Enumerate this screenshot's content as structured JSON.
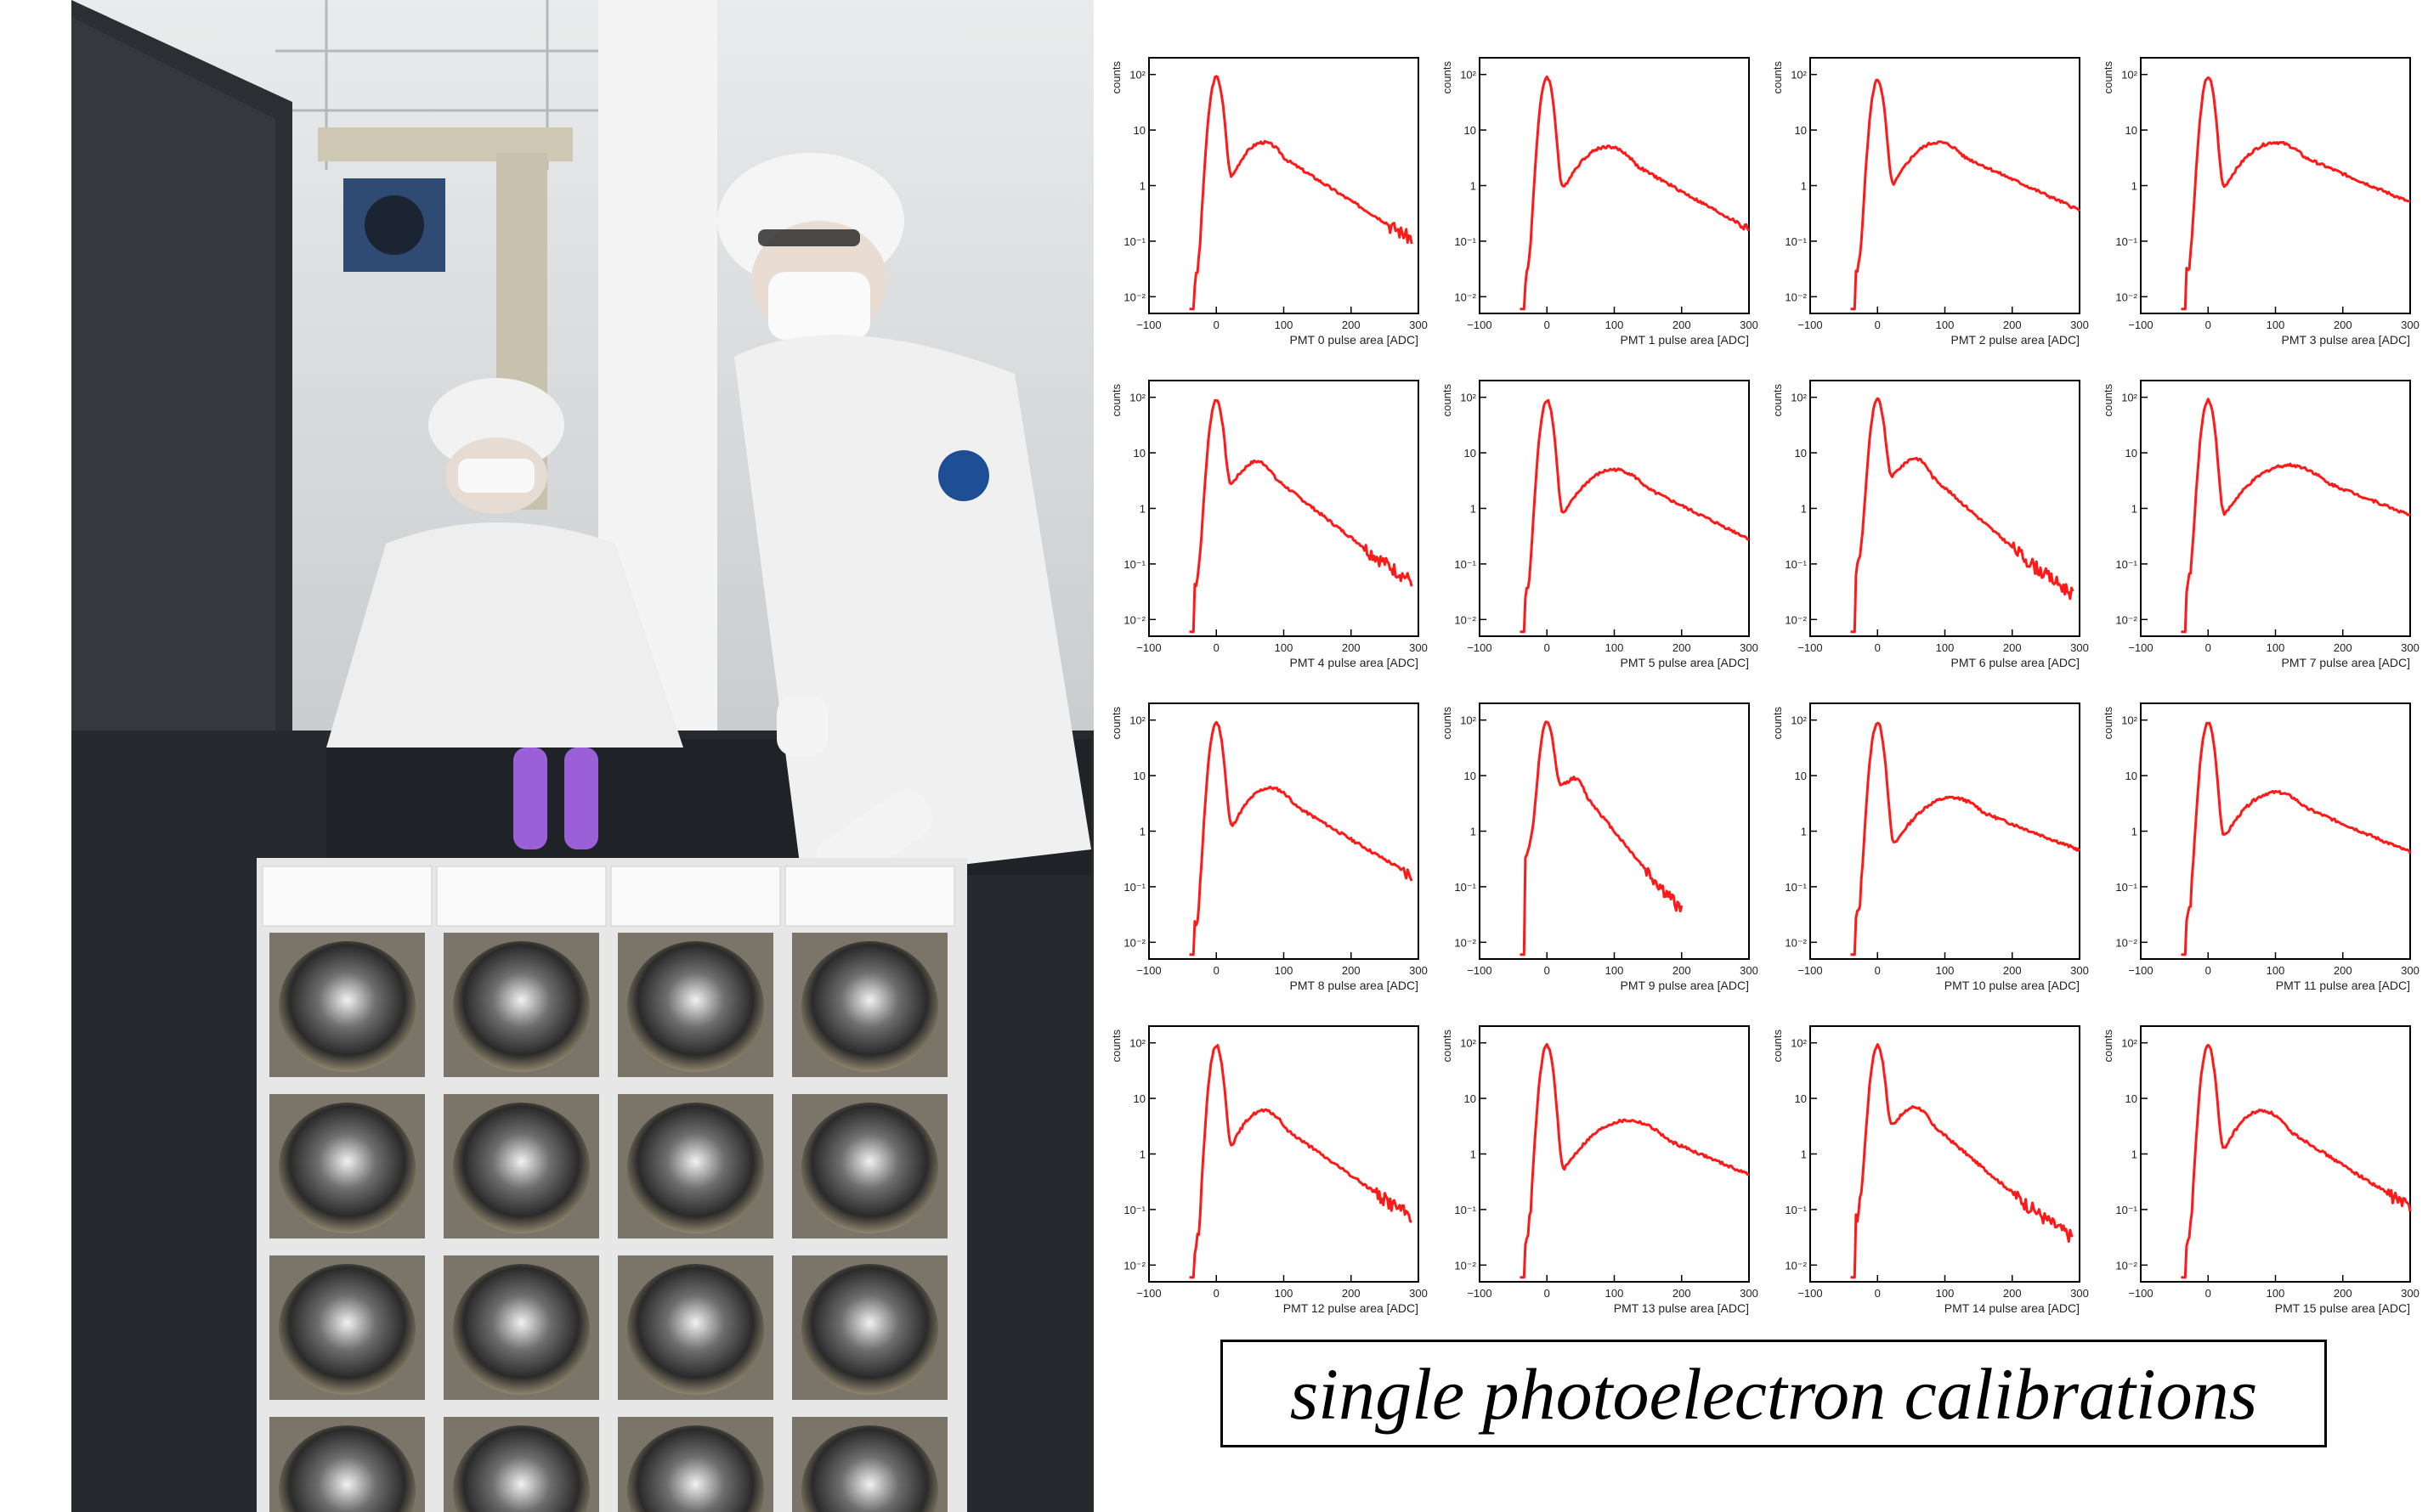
{
  "caption": "single photoelectron calibrations",
  "colors": {
    "histogram": "#ff1a1a",
    "frame": "#000000",
    "background": "#ffffff"
  },
  "photo": {
    "description_icon": "lab-photo-icon",
    "people": 2
  },
  "chart_data": {
    "type": "line",
    "layout": "4x4 grid of histograms",
    "x_range": [
      -100,
      300
    ],
    "y_scale": "log",
    "x_ticks": [
      "−100",
      "0",
      "100",
      "200",
      "300"
    ],
    "y_ticks": [
      "10⁻²",
      "10⁻¹",
      "1",
      "10",
      "10²"
    ],
    "ylabel": "counts",
    "panels": [
      {
        "xlabel": "PMT 0 pulse area [ADC]",
        "peak_y": 90,
        "shoulder_x": 70,
        "shoulder_y": 6,
        "slope": 0.018,
        "end_x": 290
      },
      {
        "xlabel": "PMT 1 pulse area [ADC]",
        "peak_y": 90,
        "shoulder_x": 90,
        "shoulder_y": 5,
        "slope": 0.016,
        "end_x": 300
      },
      {
        "xlabel": "PMT 2 pulse area [ADC]",
        "peak_y": 80,
        "shoulder_x": 90,
        "shoulder_y": 6,
        "slope": 0.013,
        "end_x": 300
      },
      {
        "xlabel": "PMT 3 pulse area [ADC]",
        "peak_y": 90,
        "shoulder_x": 100,
        "shoulder_y": 6,
        "slope": 0.012,
        "end_x": 300
      },
      {
        "xlabel": "PMT 4 pulse area [ADC]",
        "peak_y": 90,
        "shoulder_x": 60,
        "shoulder_y": 7,
        "slope": 0.022,
        "end_x": 290
      },
      {
        "xlabel": "PMT 5 pulse area [ADC]",
        "peak_y": 90,
        "shoulder_x": 100,
        "shoulder_y": 5,
        "slope": 0.014,
        "end_x": 300
      },
      {
        "xlabel": "PMT 6 pulse area [ADC]",
        "peak_y": 90,
        "shoulder_x": 55,
        "shoulder_y": 8,
        "slope": 0.025,
        "end_x": 290
      },
      {
        "xlabel": "PMT 7 pulse area [ADC]",
        "peak_y": 90,
        "shoulder_x": 120,
        "shoulder_y": 6,
        "slope": 0.011,
        "end_x": 300
      },
      {
        "xlabel": "PMT 8 pulse area [ADC]",
        "peak_y": 90,
        "shoulder_x": 80,
        "shoulder_y": 6,
        "slope": 0.017,
        "end_x": 290
      },
      {
        "xlabel": "PMT 9 pulse area [ADC]",
        "peak_y": 90,
        "shoulder_x": 40,
        "shoulder_y": 9,
        "slope": 0.035,
        "end_x": 200
      },
      {
        "xlabel": "PMT 10 pulse area [ADC]",
        "peak_y": 90,
        "shoulder_x": 110,
        "shoulder_y": 4,
        "slope": 0.011,
        "end_x": 300
      },
      {
        "xlabel": "PMT 11 pulse area [ADC]",
        "peak_y": 90,
        "shoulder_x": 100,
        "shoulder_y": 5,
        "slope": 0.012,
        "end_x": 300
      },
      {
        "xlabel": "PMT 12 pulse area [ADC]",
        "peak_y": 90,
        "shoulder_x": 70,
        "shoulder_y": 6,
        "slope": 0.02,
        "end_x": 290
      },
      {
        "xlabel": "PMT 13 pulse area [ADC]",
        "peak_y": 90,
        "shoulder_x": 120,
        "shoulder_y": 4,
        "slope": 0.012,
        "end_x": 300
      },
      {
        "xlabel": "PMT 14 pulse area [ADC]",
        "peak_y": 90,
        "shoulder_x": 55,
        "shoulder_y": 7,
        "slope": 0.024,
        "end_x": 290
      },
      {
        "xlabel": "PMT 15 pulse area [ADC]",
        "peak_y": 90,
        "shoulder_x": 80,
        "shoulder_y": 6,
        "slope": 0.018,
        "end_x": 300
      }
    ]
  }
}
